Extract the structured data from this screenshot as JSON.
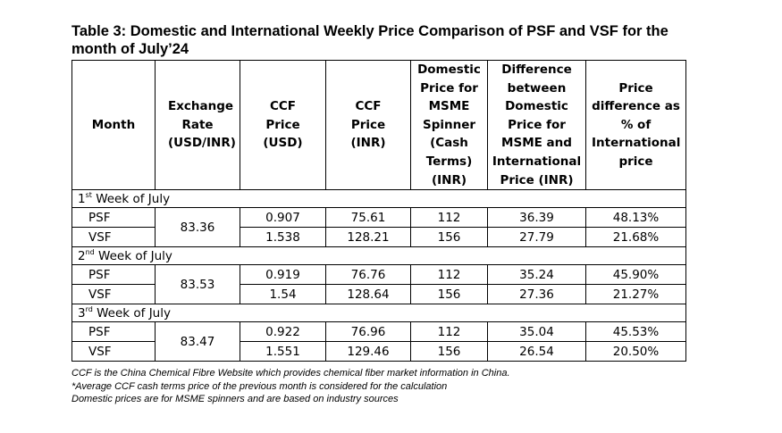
{
  "title": "Table 3: Domestic and International Weekly Price Comparison of PSF and VSF for the month of July’24",
  "headers": [
    "Month",
    "Exchange Rate (USD/INR)",
    "CCF Price (USD)",
    "CCF Price (INR)",
    "Domestic Price for MSME Spinner (Cash Terms) (INR)",
    "Difference between Domestic Price for MSME and International Price (INR)",
    "Price difference as % of International price"
  ],
  "weeks": [
    {
      "num": "1",
      "suffix": "st",
      "label": " Week of July",
      "exchange_rate": "83.36",
      "rows": [
        {
          "fiber": "PSF",
          "ccf_usd": "0.907",
          "ccf_inr": "75.61",
          "domestic": "112",
          "difference": "36.39",
          "pct": "48.13%"
        },
        {
          "fiber": "VSF",
          "ccf_usd": "1.538",
          "ccf_inr": "128.21",
          "domestic": "156",
          "difference": "27.79",
          "pct": "21.68%"
        }
      ]
    },
    {
      "num": "2",
      "suffix": "nd",
      "label": " Week of July",
      "exchange_rate": "83.53",
      "rows": [
        {
          "fiber": "PSF",
          "ccf_usd": "0.919",
          "ccf_inr": "76.76",
          "domestic": "112",
          "difference": "35.24",
          "pct": "45.90%"
        },
        {
          "fiber": "VSF",
          "ccf_usd": "1.54",
          "ccf_inr": "128.64",
          "domestic": "156",
          "difference": "27.36",
          "pct": "21.27%"
        }
      ]
    },
    {
      "num": "3",
      "suffix": "rd",
      "label": " Week of July",
      "exchange_rate": "83.47",
      "rows": [
        {
          "fiber": "PSF",
          "ccf_usd": "0.922",
          "ccf_inr": "76.96",
          "domestic": "112",
          "difference": "35.04",
          "pct": "45.53%"
        },
        {
          "fiber": "VSF",
          "ccf_usd": "1.551",
          "ccf_inr": "129.46",
          "domestic": "156",
          "difference": "26.54",
          "pct": "20.50%"
        }
      ]
    }
  ],
  "notes": [
    "CCF is the China Chemical Fibre Website which provides chemical fiber market information in China.",
    "*Average CCF cash terms price of the previous month is considered for the calculation",
    "Domestic prices are for MSME spinners and are based on industry sources"
  ]
}
